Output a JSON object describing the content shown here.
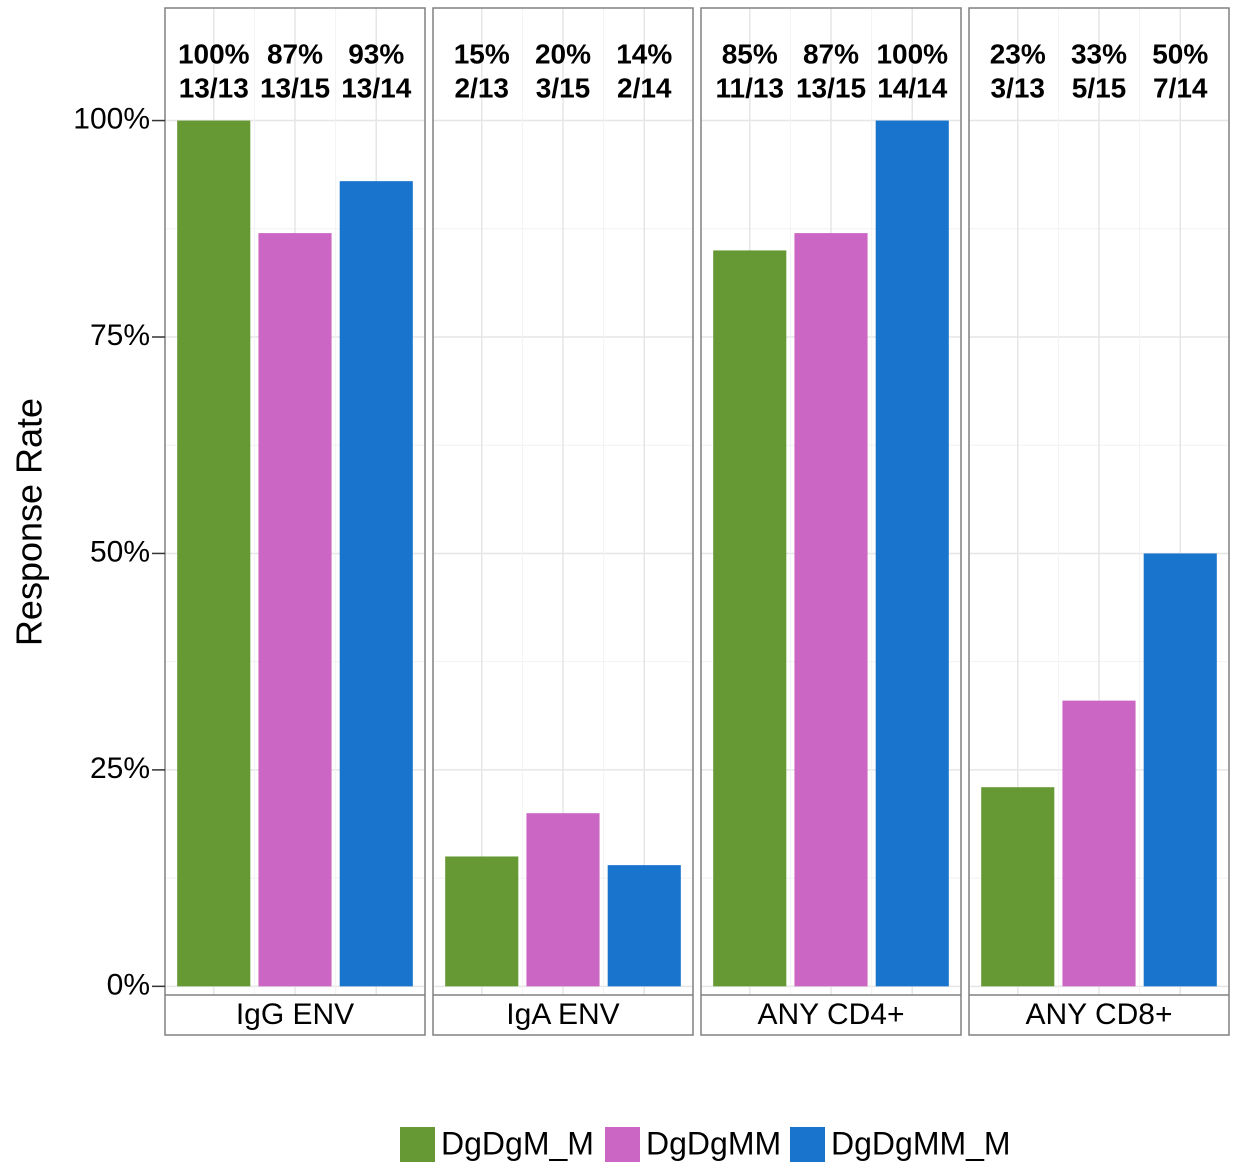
{
  "chart_data": {
    "type": "bar",
    "y_label": "Response Rate",
    "facets": [
      "IgG ENV",
      "IgA ENV",
      "ANY CD4+",
      "ANY CD8+"
    ],
    "series": [
      {
        "name": "DgDgM_M",
        "color": "#669933",
        "values": [
          100,
          15,
          85,
          23
        ],
        "value_labels": [
          "100%",
          "15%",
          "85%",
          "23%"
        ],
        "fractions": [
          "13/13",
          "2/13",
          "11/13",
          "3/13"
        ]
      },
      {
        "name": "DgDgMM",
        "color": "#cc66c4",
        "values": [
          87,
          20,
          87,
          33
        ],
        "value_labels": [
          "87%",
          "20%",
          "87%",
          "33%"
        ],
        "fractions": [
          "13/15",
          "3/15",
          "13/15",
          "5/15"
        ]
      },
      {
        "name": "DgDgMM_M",
        "color": "#1874cd",
        "values": [
          93,
          14,
          100,
          50
        ],
        "value_labels": [
          "93%",
          "14%",
          "100%",
          "50%"
        ],
        "fractions": [
          "13/14",
          "2/14",
          "14/14",
          "7/14"
        ]
      }
    ],
    "ylim": [
      -1,
      113
    ],
    "yticks": [
      {
        "value": 0,
        "label": "0%"
      },
      {
        "value": 25,
        "label": "25%"
      },
      {
        "value": 50,
        "label": "50%"
      },
      {
        "value": 75,
        "label": "75%"
      },
      {
        "value": 100,
        "label": "100%"
      }
    ],
    "y_minor_ticks": [
      12.5,
      37.5,
      62.5,
      87.5
    ],
    "grid": true,
    "legend": "bottom"
  }
}
